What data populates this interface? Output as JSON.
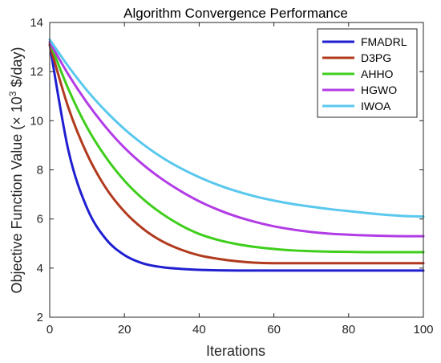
{
  "chart_data": {
    "type": "line",
    "title": "Algorithm Convergence Performance",
    "xlabel": "Iterations",
    "ylabel": {
      "prefix": "Objective Function Value (× 10",
      "superscript": "3",
      "suffix": " $/day)"
    },
    "xlim": [
      0,
      100
    ],
    "ylim": [
      2,
      14
    ],
    "xticks": [
      0,
      20,
      40,
      60,
      80,
      100
    ],
    "yticks": [
      2,
      4,
      6,
      8,
      10,
      12,
      14
    ],
    "grid": false,
    "legend_position": "top-right",
    "x": [
      0,
      5,
      10,
      15,
      20,
      25,
      30,
      35,
      40,
      45,
      50,
      55,
      60,
      65,
      70,
      75,
      80,
      85,
      90,
      95,
      100
    ],
    "series": [
      {
        "name": "FMADRL",
        "color": "#1f1fd1",
        "values": [
          13.1,
          8.79,
          6.44,
          5.19,
          4.53,
          4.19,
          4.04,
          3.97,
          3.93,
          3.91,
          3.9,
          3.9,
          3.9,
          3.9,
          3.9,
          3.9,
          3.9,
          3.9,
          3.9,
          3.9,
          3.9
        ]
      },
      {
        "name": "D3PG",
        "color": "#b13a1e",
        "values": [
          13.1,
          10.53,
          8.64,
          7.27,
          6.3,
          5.6,
          5.1,
          4.76,
          4.52,
          4.38,
          4.28,
          4.22,
          4.2,
          4.2,
          4.2,
          4.2,
          4.2,
          4.2,
          4.2,
          4.2,
          4.2
        ]
      },
      {
        "name": "AHHO",
        "color": "#3fce1c",
        "values": [
          13.2,
          11.29,
          9.73,
          8.52,
          7.56,
          6.81,
          6.22,
          5.75,
          5.39,
          5.15,
          4.98,
          4.86,
          4.78,
          4.72,
          4.69,
          4.67,
          4.66,
          4.65,
          4.65,
          4.65,
          4.65
        ]
      },
      {
        "name": "HGWO",
        "color": "#b23ce6",
        "values": [
          13.2,
          11.88,
          10.73,
          9.74,
          8.9,
          8.21,
          7.63,
          7.14,
          6.72,
          6.38,
          6.1,
          5.88,
          5.7,
          5.57,
          5.47,
          5.4,
          5.36,
          5.33,
          5.31,
          5.3,
          5.3
        ]
      },
      {
        "name": "IWOA",
        "color": "#5ac8ee",
        "values": [
          13.3,
          12.21,
          11.23,
          10.39,
          9.66,
          9.04,
          8.51,
          8.07,
          7.7,
          7.39,
          7.13,
          6.92,
          6.75,
          6.61,
          6.5,
          6.4,
          6.32,
          6.24,
          6.17,
          6.12,
          6.1
        ]
      }
    ]
  }
}
